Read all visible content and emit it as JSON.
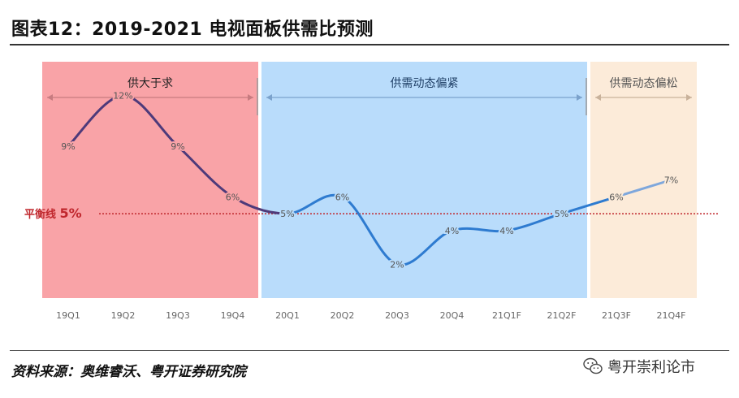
{
  "header": {
    "title": "图表12：2019-2021 电视面板供需比预测"
  },
  "footer": {
    "source": "资料来源：奥维睿沃、粤开证券研究院",
    "watermark": "粤开崇利论市",
    "watermark_icon": "wechat-icon"
  },
  "chart_data": {
    "type": "line",
    "categories": [
      "19Q1",
      "19Q2",
      "19Q3",
      "19Q4",
      "20Q1",
      "20Q2",
      "20Q3",
      "20Q4",
      "21Q1F",
      "21Q2F",
      "21Q3F",
      "21Q4F"
    ],
    "series": [
      {
        "values": [
          9,
          12,
          9,
          6,
          5,
          6,
          2,
          4,
          4,
          5,
          6,
          7
        ],
        "labels": [
          "9%",
          "12%",
          "9%",
          "6%",
          "5%",
          "6%",
          "2%",
          "4%",
          "4%",
          "5%",
          "6%",
          "7%"
        ]
      }
    ],
    "ylim": [
      0,
      14
    ],
    "reference_line": {
      "value": 5,
      "label": "平衡线",
      "value_label": "5%",
      "color": "#c0272d"
    },
    "regions": [
      {
        "label": "供大于求",
        "start": 0,
        "end": 3,
        "fill": "#f9a3a7",
        "line": "#4e3a7a"
      },
      {
        "label": "供需动态偏紧",
        "start": 4,
        "end": 9,
        "fill": "#b9dcfb",
        "line": "#2e7bd0"
      },
      {
        "label": "供需动态偏松",
        "start": 10,
        "end": 11,
        "fill": "#fcebd9",
        "line": "#7ea7dc"
      }
    ],
    "grid": false,
    "legend": "none"
  }
}
